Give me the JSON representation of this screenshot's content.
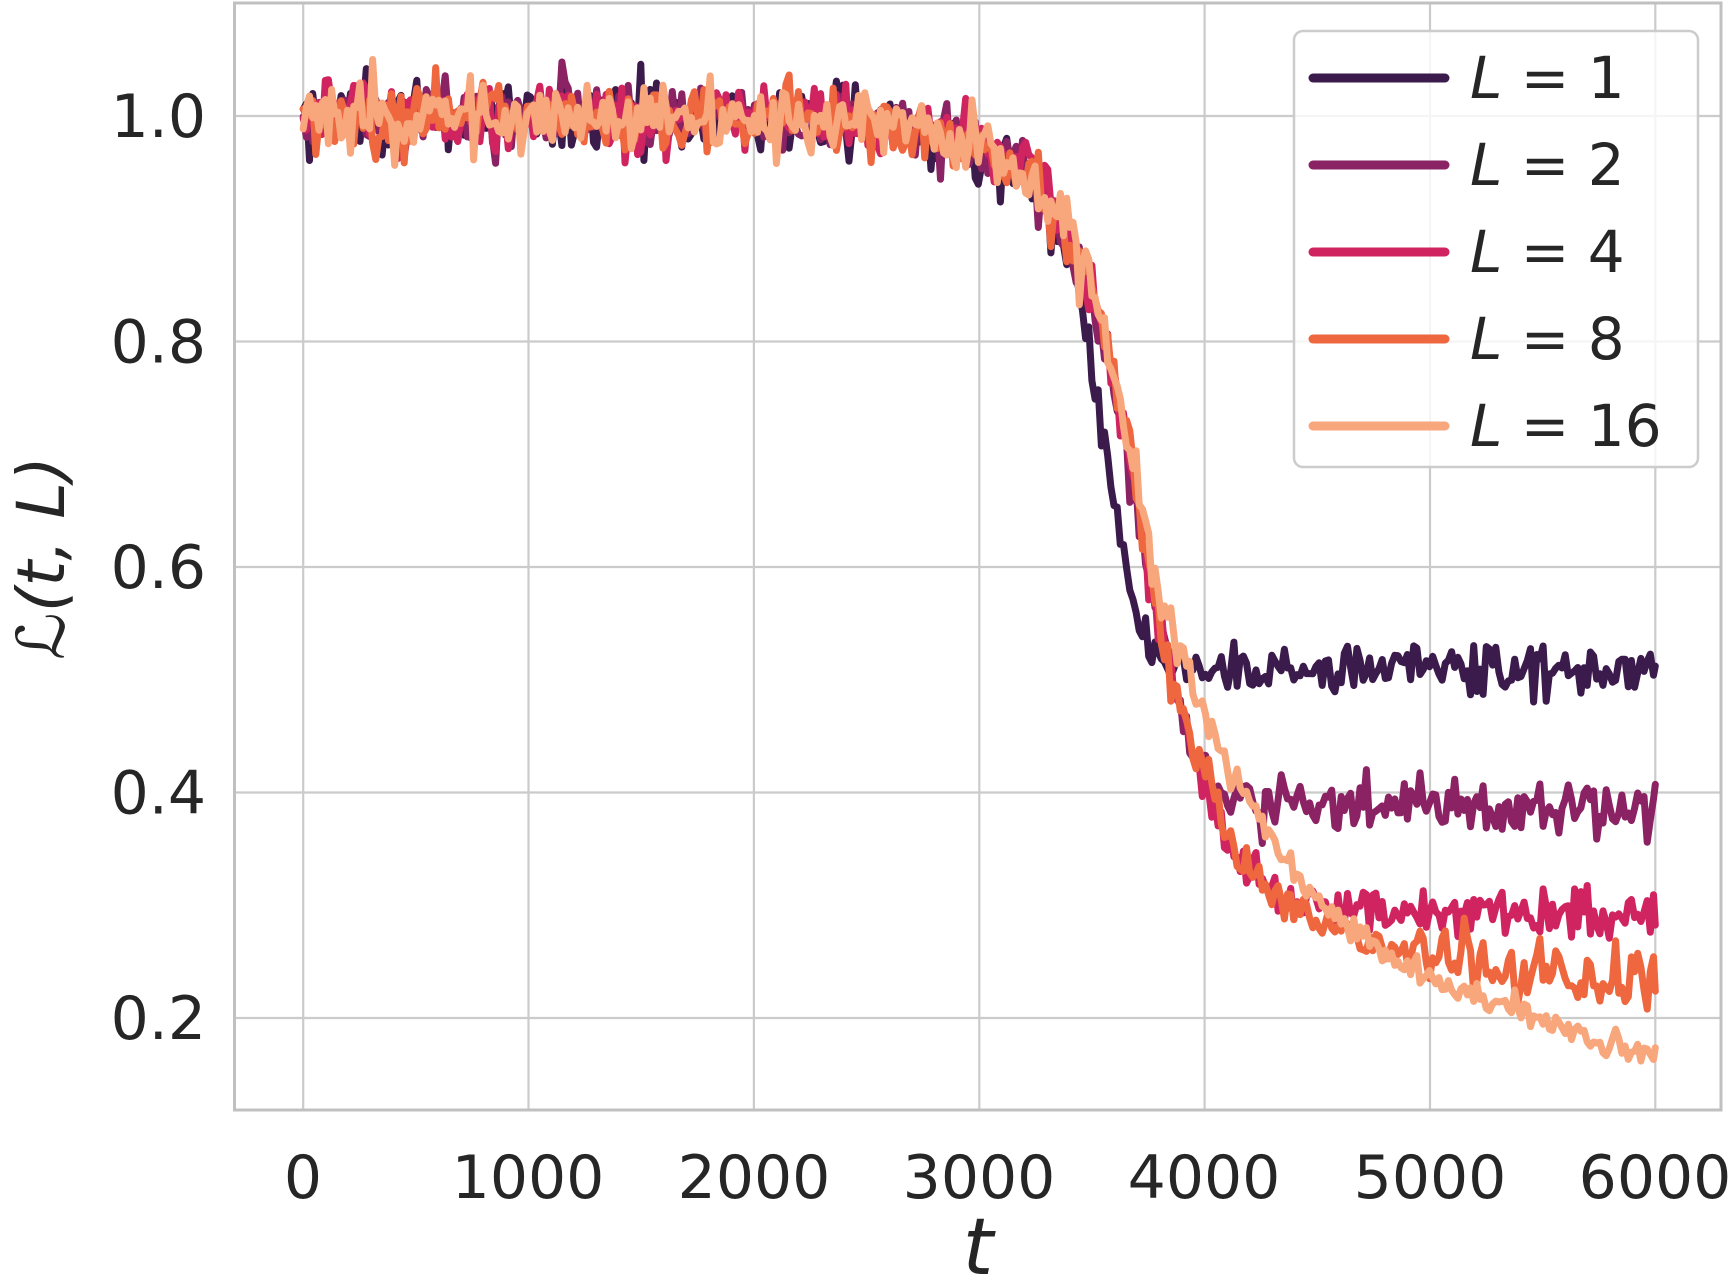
{
  "chart_data": {
    "type": "line",
    "title": "",
    "xlabel": "t",
    "ylabel": "ℒ(t, L)",
    "ylabel_parts": {
      "script": "ℒ",
      "rest": "(t, L)"
    },
    "xlim": [
      -305,
      6295
    ],
    "ylim": [
      0.118,
      1.1
    ],
    "x_range_of_data": [
      0,
      6000
    ],
    "grid": true,
    "xticks": [
      0,
      1000,
      2000,
      3000,
      4000,
      5000,
      6000
    ],
    "xtick_labels": [
      "0",
      "1000",
      "2000",
      "3000",
      "4000",
      "5000",
      "6000"
    ],
    "yticks": [
      1.0,
      0.8,
      0.6,
      0.4,
      0.2
    ],
    "ytick_labels": [
      "1.0",
      "0.8",
      "0.6",
      "0.4",
      "0.2"
    ],
    "colors": {
      "background": "#ffffff",
      "grid": "#cbcbcb",
      "spine": "#c0c0c0",
      "text": "#262626",
      "legend_border": "#cccccc"
    },
    "legend": {
      "position": "upper right",
      "items": [
        {
          "label": "L = 1",
          "lhs": "L",
          "rhs": " = 1",
          "color": "#3b1a4c"
        },
        {
          "label": "L = 2",
          "lhs": "L",
          "rhs": " = 2",
          "color": "#8a2263"
        },
        {
          "label": "L = 4",
          "lhs": "L",
          "rhs": " = 4",
          "color": "#d02460"
        },
        {
          "label": "L = 8",
          "lhs": "L",
          "rhs": " = 8",
          "color": "#ee673f"
        },
        {
          "label": "L = 16",
          "lhs": "L",
          "rhs": " = 16",
          "color": "#f8a67c"
        }
      ]
    },
    "series": [
      {
        "name": "L = 1",
        "L": 1,
        "color": "#3b1a4c",
        "end_value": 0.508,
        "anchors": [
          [
            0,
            1.001
          ],
          [
            500,
            1.0
          ],
          [
            1000,
            0.999
          ],
          [
            1500,
            0.999
          ],
          [
            2000,
            0.998
          ],
          [
            2300,
            0.997
          ],
          [
            2600,
            0.993
          ],
          [
            2800,
            0.987
          ],
          [
            2950,
            0.978
          ],
          [
            3100,
            0.962
          ],
          [
            3200,
            0.947
          ],
          [
            3300,
            0.922
          ],
          [
            3350,
            0.903
          ],
          [
            3400,
            0.873
          ],
          [
            3450,
            0.836
          ],
          [
            3500,
            0.78
          ],
          [
            3550,
            0.722
          ],
          [
            3600,
            0.66
          ],
          [
            3650,
            0.603
          ],
          [
            3700,
            0.558
          ],
          [
            3750,
            0.53
          ],
          [
            3800,
            0.516
          ],
          [
            3900,
            0.51
          ],
          [
            4200,
            0.509
          ],
          [
            5000,
            0.512
          ],
          [
            6000,
            0.508
          ]
        ],
        "noise": [
          [
            0,
            0.016
          ],
          [
            3250,
            0.015
          ],
          [
            3500,
            0.013
          ],
          [
            3800,
            0.0125
          ],
          [
            6000,
            0.0125
          ]
        ],
        "spikes": []
      },
      {
        "name": "L = 2",
        "L": 2,
        "color": "#8a2263",
        "end_value": 0.386,
        "anchors": [
          [
            0,
            1.0
          ],
          [
            600,
            1.0
          ],
          [
            1200,
            0.999
          ],
          [
            1800,
            0.998
          ],
          [
            2300,
            0.997
          ],
          [
            2600,
            0.992
          ],
          [
            2800,
            0.986
          ],
          [
            2950,
            0.977
          ],
          [
            3100,
            0.961
          ],
          [
            3200,
            0.946
          ],
          [
            3300,
            0.924
          ],
          [
            3400,
            0.889
          ],
          [
            3500,
            0.84
          ],
          [
            3550,
            0.806
          ],
          [
            3600,
            0.762
          ],
          [
            3650,
            0.71
          ],
          [
            3700,
            0.652
          ],
          [
            3750,
            0.594
          ],
          [
            3800,
            0.543
          ],
          [
            3850,
            0.503
          ],
          [
            3900,
            0.468
          ],
          [
            3950,
            0.44
          ],
          [
            4000,
            0.418
          ],
          [
            4050,
            0.402
          ],
          [
            4100,
            0.394
          ],
          [
            4200,
            0.39
          ],
          [
            4600,
            0.388
          ],
          [
            5300,
            0.389
          ],
          [
            6000,
            0.386
          ]
        ],
        "noise": [
          [
            0,
            0.016
          ],
          [
            3250,
            0.014
          ],
          [
            3900,
            0.012
          ],
          [
            6000,
            0.0115
          ]
        ],
        "spikes": []
      },
      {
        "name": "L = 4",
        "L": 4,
        "color": "#d02460",
        "end_value": 0.289,
        "anchors": [
          [
            0,
            1.0
          ],
          [
            700,
            0.999
          ],
          [
            1400,
            0.999
          ],
          [
            2100,
            0.998
          ],
          [
            2600,
            0.992
          ],
          [
            2800,
            0.986
          ],
          [
            2950,
            0.977
          ],
          [
            3100,
            0.961
          ],
          [
            3200,
            0.946
          ],
          [
            3300,
            0.925
          ],
          [
            3400,
            0.891
          ],
          [
            3500,
            0.843
          ],
          [
            3550,
            0.81
          ],
          [
            3600,
            0.767
          ],
          [
            3650,
            0.716
          ],
          [
            3700,
            0.659
          ],
          [
            3750,
            0.601
          ],
          [
            3800,
            0.549
          ],
          [
            3850,
            0.508
          ],
          [
            3900,
            0.472
          ],
          [
            3950,
            0.442
          ],
          [
            4000,
            0.409
          ],
          [
            4050,
            0.383
          ],
          [
            4100,
            0.36
          ],
          [
            4150,
            0.342
          ],
          [
            4200,
            0.328
          ],
          [
            4250,
            0.317
          ],
          [
            4300,
            0.308
          ],
          [
            4350,
            0.302
          ],
          [
            4400,
            0.298
          ],
          [
            4500,
            0.302
          ],
          [
            4700,
            0.298
          ],
          [
            5200,
            0.294
          ],
          [
            6000,
            0.289
          ]
        ],
        "noise": [
          [
            0,
            0.016
          ],
          [
            3250,
            0.014
          ],
          [
            4100,
            0.0105
          ],
          [
            6000,
            0.01
          ]
        ],
        "spikes": []
      },
      {
        "name": "L = 8",
        "L": 8,
        "color": "#ee673f",
        "end_value": 0.215,
        "anchors": [
          [
            0,
            1.001
          ],
          [
            800,
            1.0
          ],
          [
            1600,
            0.999
          ],
          [
            2300,
            0.997
          ],
          [
            2600,
            0.993
          ],
          [
            2800,
            0.987
          ],
          [
            2950,
            0.978
          ],
          [
            3100,
            0.962
          ],
          [
            3200,
            0.947
          ],
          [
            3300,
            0.925
          ],
          [
            3400,
            0.892
          ],
          [
            3500,
            0.845
          ],
          [
            3550,
            0.812
          ],
          [
            3600,
            0.769
          ],
          [
            3650,
            0.719
          ],
          [
            3700,
            0.663
          ],
          [
            3750,
            0.606
          ],
          [
            3800,
            0.554
          ],
          [
            3850,
            0.513
          ],
          [
            3900,
            0.478
          ],
          [
            3950,
            0.448
          ],
          [
            4000,
            0.416
          ],
          [
            4050,
            0.39
          ],
          [
            4100,
            0.366
          ],
          [
            4200,
            0.335
          ],
          [
            4300,
            0.314
          ],
          [
            4400,
            0.3
          ],
          [
            4500,
            0.287
          ],
          [
            4600,
            0.277
          ],
          [
            4700,
            0.268
          ],
          [
            4800,
            0.26
          ],
          [
            4900,
            0.253
          ],
          [
            5000,
            0.247
          ],
          [
            5100,
            0.241
          ],
          [
            5200,
            0.237
          ],
          [
            5400,
            0.231
          ],
          [
            5600,
            0.227
          ],
          [
            5800,
            0.223
          ],
          [
            6000,
            0.215
          ]
        ],
        "noise": [
          [
            0,
            0.016
          ],
          [
            3250,
            0.014
          ],
          [
            4200,
            0.009
          ],
          [
            6000,
            0.0085
          ]
        ],
        "spikes": [
          [
            4960,
            0.022,
            14
          ],
          [
            5060,
            0.032,
            14
          ],
          [
            5155,
            0.068,
            11
          ],
          [
            5235,
            0.026,
            13
          ],
          [
            5350,
            0.028,
            13
          ],
          [
            5480,
            0.022,
            12
          ],
          [
            5565,
            0.035,
            13
          ],
          [
            5700,
            0.03,
            12
          ],
          [
            5825,
            0.038,
            12
          ],
          [
            5920,
            0.034,
            12
          ],
          [
            5985,
            0.025,
            10
          ]
        ]
      },
      {
        "name": "L = 16",
        "L": 16,
        "color": "#f8a67c",
        "end_value": 0.167,
        "anchors": [
          [
            0,
            1.001
          ],
          [
            400,
            1.002
          ],
          [
            900,
            1.0
          ],
          [
            1500,
            0.999
          ],
          [
            2100,
            0.998
          ],
          [
            2400,
            0.997
          ],
          [
            2600,
            0.993
          ],
          [
            2800,
            0.988
          ],
          [
            2950,
            0.979
          ],
          [
            3100,
            0.963
          ],
          [
            3200,
            0.948
          ],
          [
            3300,
            0.927
          ],
          [
            3400,
            0.895
          ],
          [
            3500,
            0.849
          ],
          [
            3550,
            0.817
          ],
          [
            3600,
            0.775
          ],
          [
            3650,
            0.726
          ],
          [
            3700,
            0.672
          ],
          [
            3750,
            0.62
          ],
          [
            3800,
            0.578
          ],
          [
            3850,
            0.545
          ],
          [
            3900,
            0.517
          ],
          [
            3950,
            0.492
          ],
          [
            4000,
            0.469
          ],
          [
            4100,
            0.427
          ],
          [
            4200,
            0.39
          ],
          [
            4300,
            0.357
          ],
          [
            4400,
            0.329
          ],
          [
            4500,
            0.305
          ],
          [
            4600,
            0.287
          ],
          [
            4700,
            0.271
          ],
          [
            4800,
            0.257
          ],
          [
            4900,
            0.245
          ],
          [
            5000,
            0.235
          ],
          [
            5100,
            0.226
          ],
          [
            5200,
            0.218
          ],
          [
            5300,
            0.21
          ],
          [
            5400,
            0.203
          ],
          [
            5500,
            0.196
          ],
          [
            5600,
            0.189
          ],
          [
            5700,
            0.182
          ],
          [
            5800,
            0.176
          ],
          [
            5900,
            0.171
          ],
          [
            6000,
            0.167
          ]
        ],
        "noise": [
          [
            0,
            0.017
          ],
          [
            3250,
            0.014
          ],
          [
            4100,
            0.008
          ],
          [
            4500,
            0.0065
          ],
          [
            6000,
            0.006
          ]
        ],
        "spikes": []
      }
    ]
  }
}
